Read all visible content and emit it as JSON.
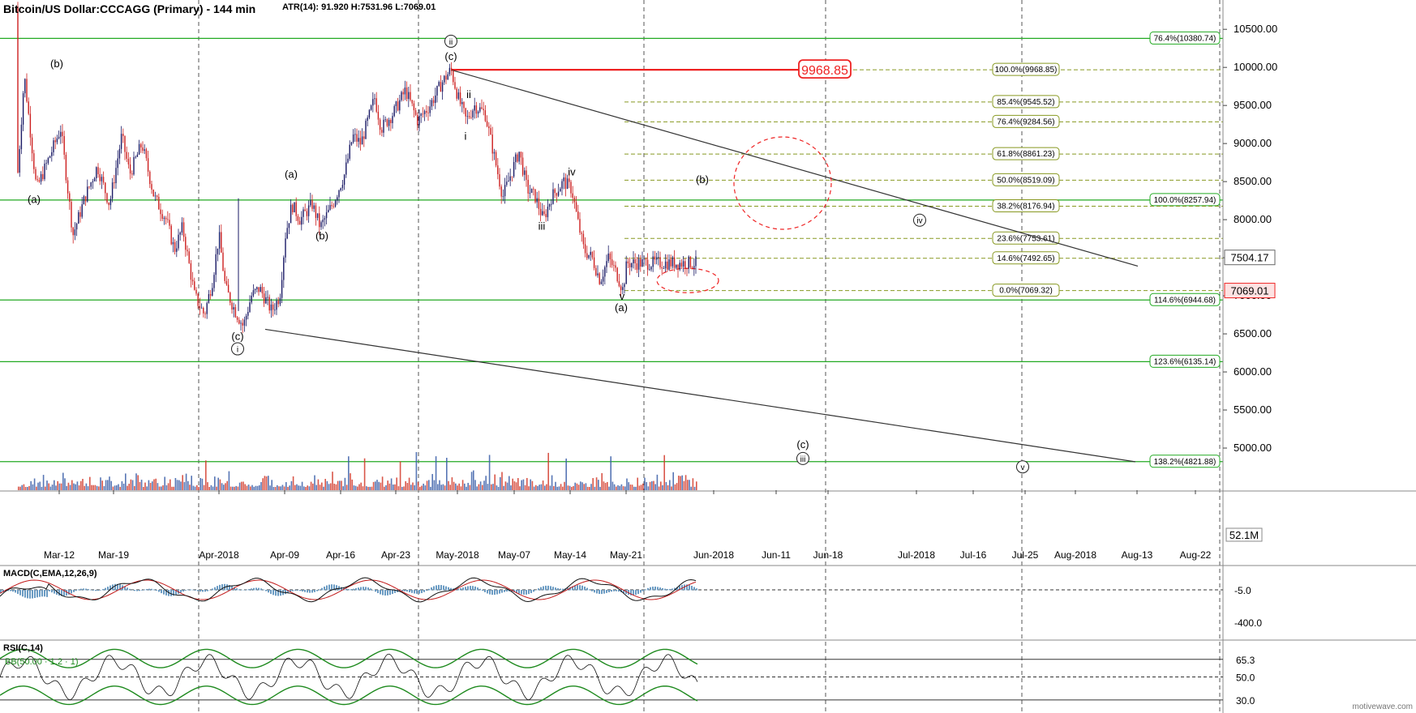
{
  "header": {
    "title": "Bitcoin/US Dollar:CCCAGG (Primary) - 144 min",
    "stats": "ATR(14): 91.920  H:7531.96  L:7069.01"
  },
  "colors": {
    "green": "#22aa22",
    "red": "#ee2222",
    "fib": "#889922",
    "trend": "#333333",
    "grid": "#555555",
    "macd_hist": "#6a9bc3",
    "rsi_band": "#1e8a1e"
  },
  "chart_data": [
    {
      "type": "candlestick",
      "title": "Bitcoin/US Dollar:CCCAGG (Primary) - 144 min",
      "ylim": [
        4500,
        10800
      ],
      "yticks": [
        "5000.00",
        "5500.00",
        "6000.00",
        "6500.00",
        "7000.00",
        "7500.00",
        "8000.00",
        "8500.00",
        "9000.00",
        "9500.00",
        "10000.00",
        "10500.00"
      ],
      "ytick_values": [
        5000,
        5500,
        6000,
        6500,
        7000,
        7500,
        8000,
        8500,
        9000,
        9500,
        10000,
        10500
      ],
      "xticks": [
        "Mar-12",
        "Mar-19",
        "Apr-2018",
        "Apr-09",
        "Apr-16",
        "Apr-23",
        "May-2018",
        "May-07",
        "May-14",
        "May-21",
        "Jun-2018",
        "Jun-11",
        "Jun-18",
        "Jul-2018",
        "Jul-16",
        "Jul-25",
        "Aug-2018",
        "Aug-13",
        "Aug-22"
      ],
      "price_path": [
        [
          0,
          10800
        ],
        [
          10,
          10500
        ],
        [
          20,
          8300
        ],
        [
          30,
          9900
        ],
        [
          45,
          8400
        ],
        [
          60,
          8800
        ],
        [
          75,
          9200
        ],
        [
          90,
          7800
        ],
        [
          105,
          8300
        ],
        [
          120,
          8700
        ],
        [
          135,
          8200
        ],
        [
          150,
          9100
        ],
        [
          160,
          8600
        ],
        [
          175,
          9000
        ],
        [
          190,
          8300
        ],
        [
          205,
          8000
        ],
        [
          215,
          7600
        ],
        [
          225,
          7900
        ],
        [
          240,
          7000
        ],
        [
          252,
          6750
        ],
        [
          262,
          7200
        ],
        [
          270,
          7800
        ],
        [
          278,
          7100
        ],
        [
          290,
          6800
        ],
        [
          300,
          6600
        ],
        [
          310,
          7000
        ],
        [
          320,
          7100
        ],
        [
          335,
          6800
        ],
        [
          345,
          7000
        ],
        [
          352,
          7800
        ],
        [
          360,
          8200
        ],
        [
          370,
          8000
        ],
        [
          385,
          8200
        ],
        [
          395,
          7900
        ],
        [
          410,
          8200
        ],
        [
          425,
          8600
        ],
        [
          435,
          9100
        ],
        [
          445,
          9000
        ],
        [
          462,
          9600
        ],
        [
          470,
          9200
        ],
        [
          485,
          9400
        ],
        [
          500,
          9700
        ],
        [
          515,
          9300
        ],
        [
          530,
          9500
        ],
        [
          545,
          9800
        ],
        [
          556,
          9970
        ],
        [
          565,
          9600
        ],
        [
          575,
          9300
        ],
        [
          585,
          9500
        ],
        [
          598,
          9400
        ],
        [
          610,
          8800
        ],
        [
          620,
          8300
        ],
        [
          630,
          8600
        ],
        [
          640,
          8900
        ],
        [
          650,
          8400
        ],
        [
          660,
          8300
        ],
        [
          670,
          8000
        ],
        [
          680,
          8300
        ],
        [
          695,
          8500
        ],
        [
          705,
          8400
        ],
        [
          712,
          8000
        ],
        [
          720,
          7600
        ],
        [
          730,
          7500
        ],
        [
          740,
          7200
        ],
        [
          750,
          7500
        ],
        [
          760,
          7300
        ],
        [
          768,
          7080
        ],
        [
          773,
          7430
        ]
      ],
      "volume_label": "52.1M",
      "last_price": "7504.17",
      "low_price": "7069.01",
      "target_box": "9968.85",
      "fib_labels": [
        {
          "text": "100.0%(9968.85)",
          "price": 9968.85
        },
        {
          "text": "85.4%(9545.52)",
          "price": 9545.52
        },
        {
          "text": "76.4%(9284.56)",
          "price": 9284.56
        },
        {
          "text": "61.8%(8861.23)",
          "price": 8861.23
        },
        {
          "text": "50.0%(8519.09)",
          "price": 8519.09
        },
        {
          "text": "38.2%(8176.94)",
          "price": 8176.94
        },
        {
          "text": "23.6%(7753.61)",
          "price": 7753.61
        },
        {
          "text": "14.6%(7492.65)",
          "price": 7492.65
        },
        {
          "text": "0.0%(7069.32)",
          "price": 7069.32
        }
      ],
      "green_levels": [
        {
          "text": "76.4%(10380.74)",
          "price": 10380.74
        },
        {
          "text": "100.0%(8257.94)",
          "price": 8257.94
        },
        {
          "text": "114.6%(6944.68)",
          "price": 6944.68
        },
        {
          "text": "123.6%(6135.14)",
          "price": 6135.14
        },
        {
          "text": "138.2%(4821.88)",
          "price": 4821.88
        }
      ],
      "wave_labels": [
        {
          "text": "(b)",
          "x": 70,
          "price": 10000
        },
        {
          "text": "(a)",
          "x": 42,
          "price": 8220
        },
        {
          "text": "(a)",
          "x": 359,
          "price": 8550
        },
        {
          "text": "(b)",
          "x": 397,
          "price": 7740
        },
        {
          "text": "(c)",
          "x": 556,
          "price": 10100
        },
        {
          "text": "ii",
          "x": 578,
          "price": 9600
        },
        {
          "text": "i",
          "x": 574,
          "price": 9050
        },
        {
          "text": "iv",
          "x": 705,
          "price": 8580
        },
        {
          "text": "iii",
          "x": 668,
          "price": 7870
        },
        {
          "text": "v",
          "x": 767,
          "price": 6950
        },
        {
          "text": "(a)",
          "x": 766,
          "price": 6800
        },
        {
          "text": "(b)",
          "x": 866,
          "price": 8480
        },
        {
          "text": "(c)",
          "x": 293,
          "price": 6420
        },
        {
          "text": "(c)",
          "x": 990,
          "price": 5000
        }
      ],
      "circled_labels": [
        {
          "text": "ii",
          "x": 556,
          "price": 10290
        },
        {
          "text": "i",
          "x": 293,
          "price": 6250
        },
        {
          "text": "iv",
          "x": 1134,
          "price": 7940
        },
        {
          "text": "iii",
          "x": 990,
          "price": 4810
        },
        {
          "text": "v",
          "x": 1261,
          "price": 4700
        }
      ]
    },
    {
      "type": "line",
      "title": "MACD(C,EMA,12,26,9)",
      "yticks": [
        "-5.0",
        "-400.0"
      ],
      "series": []
    },
    {
      "type": "line",
      "title": "RSI(C,14)",
      "legend_text": "BB(50.00 · 1.2 · 1)",
      "yticks": [
        "65.3",
        "50.0",
        "30.0"
      ],
      "hlines": [
        65.3,
        50.0,
        30.0
      ],
      "series": []
    }
  ],
  "watermark": "motivewave.com"
}
